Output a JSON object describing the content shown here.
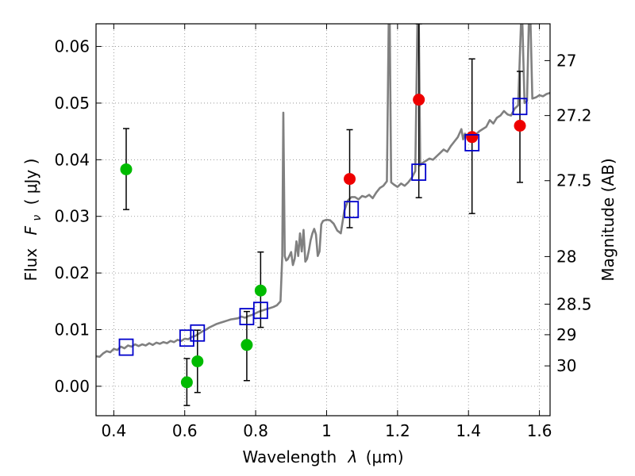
{
  "chart_data": {
    "type": "scatter",
    "xlabel_prefix": "Wavelength",
    "xlabel_symbol": "λ",
    "xlabel_unit": "(μm)",
    "ylabel_prefix": "Flux",
    "ylabel_symbol": "F",
    "ylabel_subscript": "ν",
    "ylabel_unit": "( μJy )",
    "y2label": "Magnitude (AB)",
    "xlim": [
      0.35,
      1.63
    ],
    "ylim": [
      -0.0052,
      0.064
    ],
    "grid": true,
    "x_ticks": [
      {
        "value": 0.4,
        "label": "0.4"
      },
      {
        "value": 0.6,
        "label": "0.6"
      },
      {
        "value": 0.8,
        "label": "0.8"
      },
      {
        "value": 1.0,
        "label": "1"
      },
      {
        "value": 1.2,
        "label": "1.2"
      },
      {
        "value": 1.4,
        "label": "1.4"
      },
      {
        "value": 1.6,
        "label": "1.6"
      }
    ],
    "y_ticks": [
      {
        "value": 0.0,
        "label": "0.00"
      },
      {
        "value": 0.01,
        "label": "0.01"
      },
      {
        "value": 0.02,
        "label": "0.02"
      },
      {
        "value": 0.03,
        "label": "0.03"
      },
      {
        "value": 0.04,
        "label": "0.04"
      },
      {
        "value": 0.05,
        "label": "0.05"
      },
      {
        "value": 0.06,
        "label": "0.06"
      }
    ],
    "y2_ticks": [
      {
        "flux": 0.0575,
        "label": "27"
      },
      {
        "flux": 0.0478,
        "label": "27.2"
      },
      {
        "flux": 0.0363,
        "label": "27.5"
      },
      {
        "flux": 0.0229,
        "label": "28"
      },
      {
        "flux": 0.0145,
        "label": "28.5"
      },
      {
        "flux": 0.0091,
        "label": "29"
      },
      {
        "flux": 0.0036,
        "label": "30"
      }
    ],
    "colors": {
      "model": "#808080",
      "green": "#00bb00",
      "red": "#ee0000",
      "square": "#0000cc",
      "errorbar": "#000000",
      "grid": "#888888"
    },
    "series": [
      {
        "marker": "circle",
        "color": "green",
        "points": [
          {
            "x": 0.435,
            "y": 0.0383,
            "yerr_low": 0.0312,
            "yerr_high": 0.0455
          },
          {
            "x": 0.606,
            "y": 0.0007,
            "yerr_low": -0.0034,
            "yerr_high": 0.0049
          },
          {
            "x": 0.636,
            "y": 0.0044,
            "yerr_low": -0.0011,
            "yerr_high": 0.0099
          },
          {
            "x": 0.775,
            "y": 0.0073,
            "yerr_low": 0.001,
            "yerr_high": 0.0132
          },
          {
            "x": 0.814,
            "y": 0.0169,
            "yerr_low": 0.0104,
            "yerr_high": 0.0237
          }
        ]
      },
      {
        "marker": "circle",
        "color": "red",
        "points": [
          {
            "x": 1.065,
            "y": 0.0366,
            "yerr_low": 0.028,
            "yerr_high": 0.0453
          },
          {
            "x": 1.26,
            "y": 0.0506,
            "yerr_low": 0.0333,
            "yerr_high": 0.064
          },
          {
            "x": 1.41,
            "y": 0.044,
            "yerr_low": 0.0305,
            "yerr_high": 0.0578
          },
          {
            "x": 1.545,
            "y": 0.046,
            "yerr_low": 0.036,
            "yerr_high": 0.0556
          }
        ]
      },
      {
        "marker": "square",
        "color": "square",
        "points": [
          {
            "x": 0.435,
            "y": 0.0069
          },
          {
            "x": 0.606,
            "y": 0.0085
          },
          {
            "x": 0.636,
            "y": 0.0094
          },
          {
            "x": 0.775,
            "y": 0.0123
          },
          {
            "x": 0.814,
            "y": 0.0134
          },
          {
            "x": 1.07,
            "y": 0.0312
          },
          {
            "x": 1.26,
            "y": 0.0378
          },
          {
            "x": 1.41,
            "y": 0.043
          },
          {
            "x": 1.545,
            "y": 0.0494
          }
        ]
      }
    ],
    "model_spectrum": [
      [
        0.35,
        0.0053
      ],
      [
        0.36,
        0.0052
      ],
      [
        0.37,
        0.0058
      ],
      [
        0.38,
        0.0062
      ],
      [
        0.39,
        0.006
      ],
      [
        0.4,
        0.0066
      ],
      [
        0.41,
        0.0064
      ],
      [
        0.42,
        0.007
      ],
      [
        0.43,
        0.0067
      ],
      [
        0.44,
        0.0072
      ],
      [
        0.45,
        0.007
      ],
      [
        0.46,
        0.0074
      ],
      [
        0.47,
        0.0071
      ],
      [
        0.48,
        0.0074
      ],
      [
        0.49,
        0.0072
      ],
      [
        0.5,
        0.0076
      ],
      [
        0.51,
        0.0073
      ],
      [
        0.52,
        0.0077
      ],
      [
        0.53,
        0.0075
      ],
      [
        0.54,
        0.0078
      ],
      [
        0.55,
        0.0076
      ],
      [
        0.56,
        0.008
      ],
      [
        0.57,
        0.0078
      ],
      [
        0.58,
        0.0082
      ],
      [
        0.59,
        0.008
      ],
      [
        0.6,
        0.0084
      ],
      [
        0.61,
        0.0083
      ],
      [
        0.62,
        0.0087
      ],
      [
        0.63,
        0.0089
      ],
      [
        0.64,
        0.0093
      ],
      [
        0.65,
        0.0097
      ],
      [
        0.66,
        0.01
      ],
      [
        0.67,
        0.0104
      ],
      [
        0.68,
        0.0107
      ],
      [
        0.69,
        0.011
      ],
      [
        0.7,
        0.0112
      ],
      [
        0.71,
        0.0114
      ],
      [
        0.72,
        0.0116
      ],
      [
        0.73,
        0.0118
      ],
      [
        0.74,
        0.0119
      ],
      [
        0.75,
        0.012
      ],
      [
        0.76,
        0.0123
      ],
      [
        0.77,
        0.0121
      ],
      [
        0.78,
        0.0124
      ],
      [
        0.79,
        0.0126
      ],
      [
        0.8,
        0.0129
      ],
      [
        0.81,
        0.0132
      ],
      [
        0.82,
        0.0134
      ],
      [
        0.83,
        0.0136
      ],
      [
        0.84,
        0.0138
      ],
      [
        0.85,
        0.014
      ],
      [
        0.86,
        0.0143
      ],
      [
        0.87,
        0.015
      ],
      [
        0.875,
        0.023
      ],
      [
        0.878,
        0.0483
      ],
      [
        0.882,
        0.023
      ],
      [
        0.886,
        0.0222
      ],
      [
        0.89,
        0.0224
      ],
      [
        0.895,
        0.023
      ],
      [
        0.9,
        0.0237
      ],
      [
        0.905,
        0.0214
      ],
      [
        0.91,
        0.0225
      ],
      [
        0.915,
        0.0256
      ],
      [
        0.92,
        0.023
      ],
      [
        0.925,
        0.027
      ],
      [
        0.93,
        0.0238
      ],
      [
        0.935,
        0.0276
      ],
      [
        0.94,
        0.022
      ],
      [
        0.945,
        0.0225
      ],
      [
        0.95,
        0.024
      ],
      [
        0.955,
        0.0258
      ],
      [
        0.96,
        0.027
      ],
      [
        0.965,
        0.0278
      ],
      [
        0.97,
        0.0268
      ],
      [
        0.975,
        0.023
      ],
      [
        0.98,
        0.0238
      ],
      [
        0.985,
        0.0286
      ],
      [
        0.99,
        0.0292
      ],
      [
        1.0,
        0.0294
      ],
      [
        1.01,
        0.0293
      ],
      [
        1.02,
        0.0287
      ],
      [
        1.03,
        0.0275
      ],
      [
        1.04,
        0.027
      ],
      [
        1.05,
        0.031
      ],
      [
        1.06,
        0.0328
      ],
      [
        1.07,
        0.0334
      ],
      [
        1.08,
        0.0334
      ],
      [
        1.09,
        0.033
      ],
      [
        1.1,
        0.0336
      ],
      [
        1.11,
        0.0334
      ],
      [
        1.12,
        0.0338
      ],
      [
        1.13,
        0.0332
      ],
      [
        1.14,
        0.0342
      ],
      [
        1.15,
        0.035
      ],
      [
        1.16,
        0.0354
      ],
      [
        1.17,
        0.0362
      ],
      [
        1.175,
        0.064
      ],
      [
        1.178,
        0.064
      ],
      [
        1.182,
        0.036
      ],
      [
        1.19,
        0.0356
      ],
      [
        1.2,
        0.0352
      ],
      [
        1.21,
        0.0358
      ],
      [
        1.22,
        0.0354
      ],
      [
        1.23,
        0.036
      ],
      [
        1.24,
        0.0368
      ],
      [
        1.25,
        0.038
      ],
      [
        1.256,
        0.064
      ],
      [
        1.26,
        0.064
      ],
      [
        1.264,
        0.039
      ],
      [
        1.27,
        0.0394
      ],
      [
        1.28,
        0.0398
      ],
      [
        1.29,
        0.0402
      ],
      [
        1.3,
        0.04
      ],
      [
        1.31,
        0.0406
      ],
      [
        1.32,
        0.0412
      ],
      [
        1.33,
        0.0418
      ],
      [
        1.34,
        0.0414
      ],
      [
        1.35,
        0.0424
      ],
      [
        1.36,
        0.0432
      ],
      [
        1.37,
        0.044
      ],
      [
        1.38,
        0.0454
      ],
      [
        1.385,
        0.0436
      ],
      [
        1.39,
        0.0446
      ],
      [
        1.4,
        0.044
      ],
      [
        1.41,
        0.0438
      ],
      [
        1.42,
        0.0444
      ],
      [
        1.43,
        0.045
      ],
      [
        1.44,
        0.0454
      ],
      [
        1.45,
        0.0458
      ],
      [
        1.46,
        0.047
      ],
      [
        1.47,
        0.0464
      ],
      [
        1.48,
        0.0474
      ],
      [
        1.49,
        0.0478
      ],
      [
        1.5,
        0.0486
      ],
      [
        1.51,
        0.048
      ],
      [
        1.52,
        0.0478
      ],
      [
        1.53,
        0.049
      ],
      [
        1.54,
        0.0496
      ],
      [
        1.548,
        0.064
      ],
      [
        1.552,
        0.064
      ],
      [
        1.558,
        0.05
      ],
      [
        1.565,
        0.0504
      ],
      [
        1.57,
        0.064
      ],
      [
        1.575,
        0.064
      ],
      [
        1.58,
        0.0508
      ],
      [
        1.59,
        0.051
      ],
      [
        1.6,
        0.0514
      ],
      [
        1.61,
        0.0512
      ],
      [
        1.62,
        0.0516
      ],
      [
        1.63,
        0.0518
      ]
    ]
  }
}
